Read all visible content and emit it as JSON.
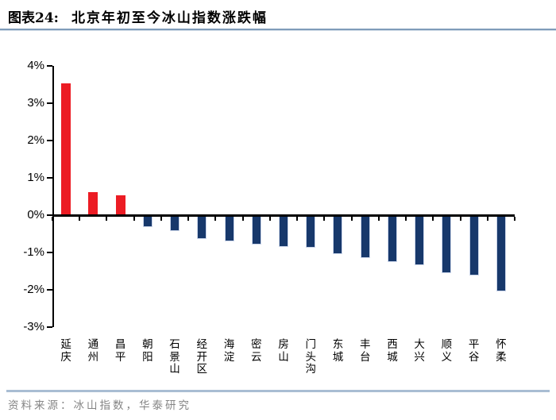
{
  "header": {
    "figure_label": "图表24:",
    "title": "北京年初至今冰山指数涨跌幅"
  },
  "footer": {
    "source": "资料来源：冰山指数，华泰研究"
  },
  "chart_data": {
    "type": "bar",
    "title": "北京年初至今冰山指数涨跌幅",
    "categories": [
      "延庆",
      "通州",
      "昌平",
      "朝阳",
      "石景山",
      "经开区",
      "海淀",
      "密云",
      "房山",
      "门头沟",
      "东城",
      "丰台",
      "西城",
      "大兴",
      "顺义",
      "平谷",
      "怀柔"
    ],
    "values": [
      3.5,
      0.6,
      0.5,
      -0.27,
      -0.38,
      -0.6,
      -0.66,
      -0.74,
      -0.8,
      -0.83,
      -1.0,
      -1.1,
      -1.2,
      -1.29,
      -1.5,
      -1.57,
      -2.0
    ],
    "unit": "%",
    "ylim": [
      -3,
      4
    ],
    "yticks": [
      4,
      3,
      2,
      1,
      0,
      -1,
      -2,
      -3
    ],
    "ytick_labels": [
      "4%",
      "3%",
      "2%",
      "1%",
      "0%",
      "-1%",
      "-2%",
      "-3%"
    ],
    "xlabel": "",
    "ylabel": "",
    "grid": false,
    "legend": "none",
    "positive_color": "#ec1c24",
    "negative_color": "#17386b"
  }
}
